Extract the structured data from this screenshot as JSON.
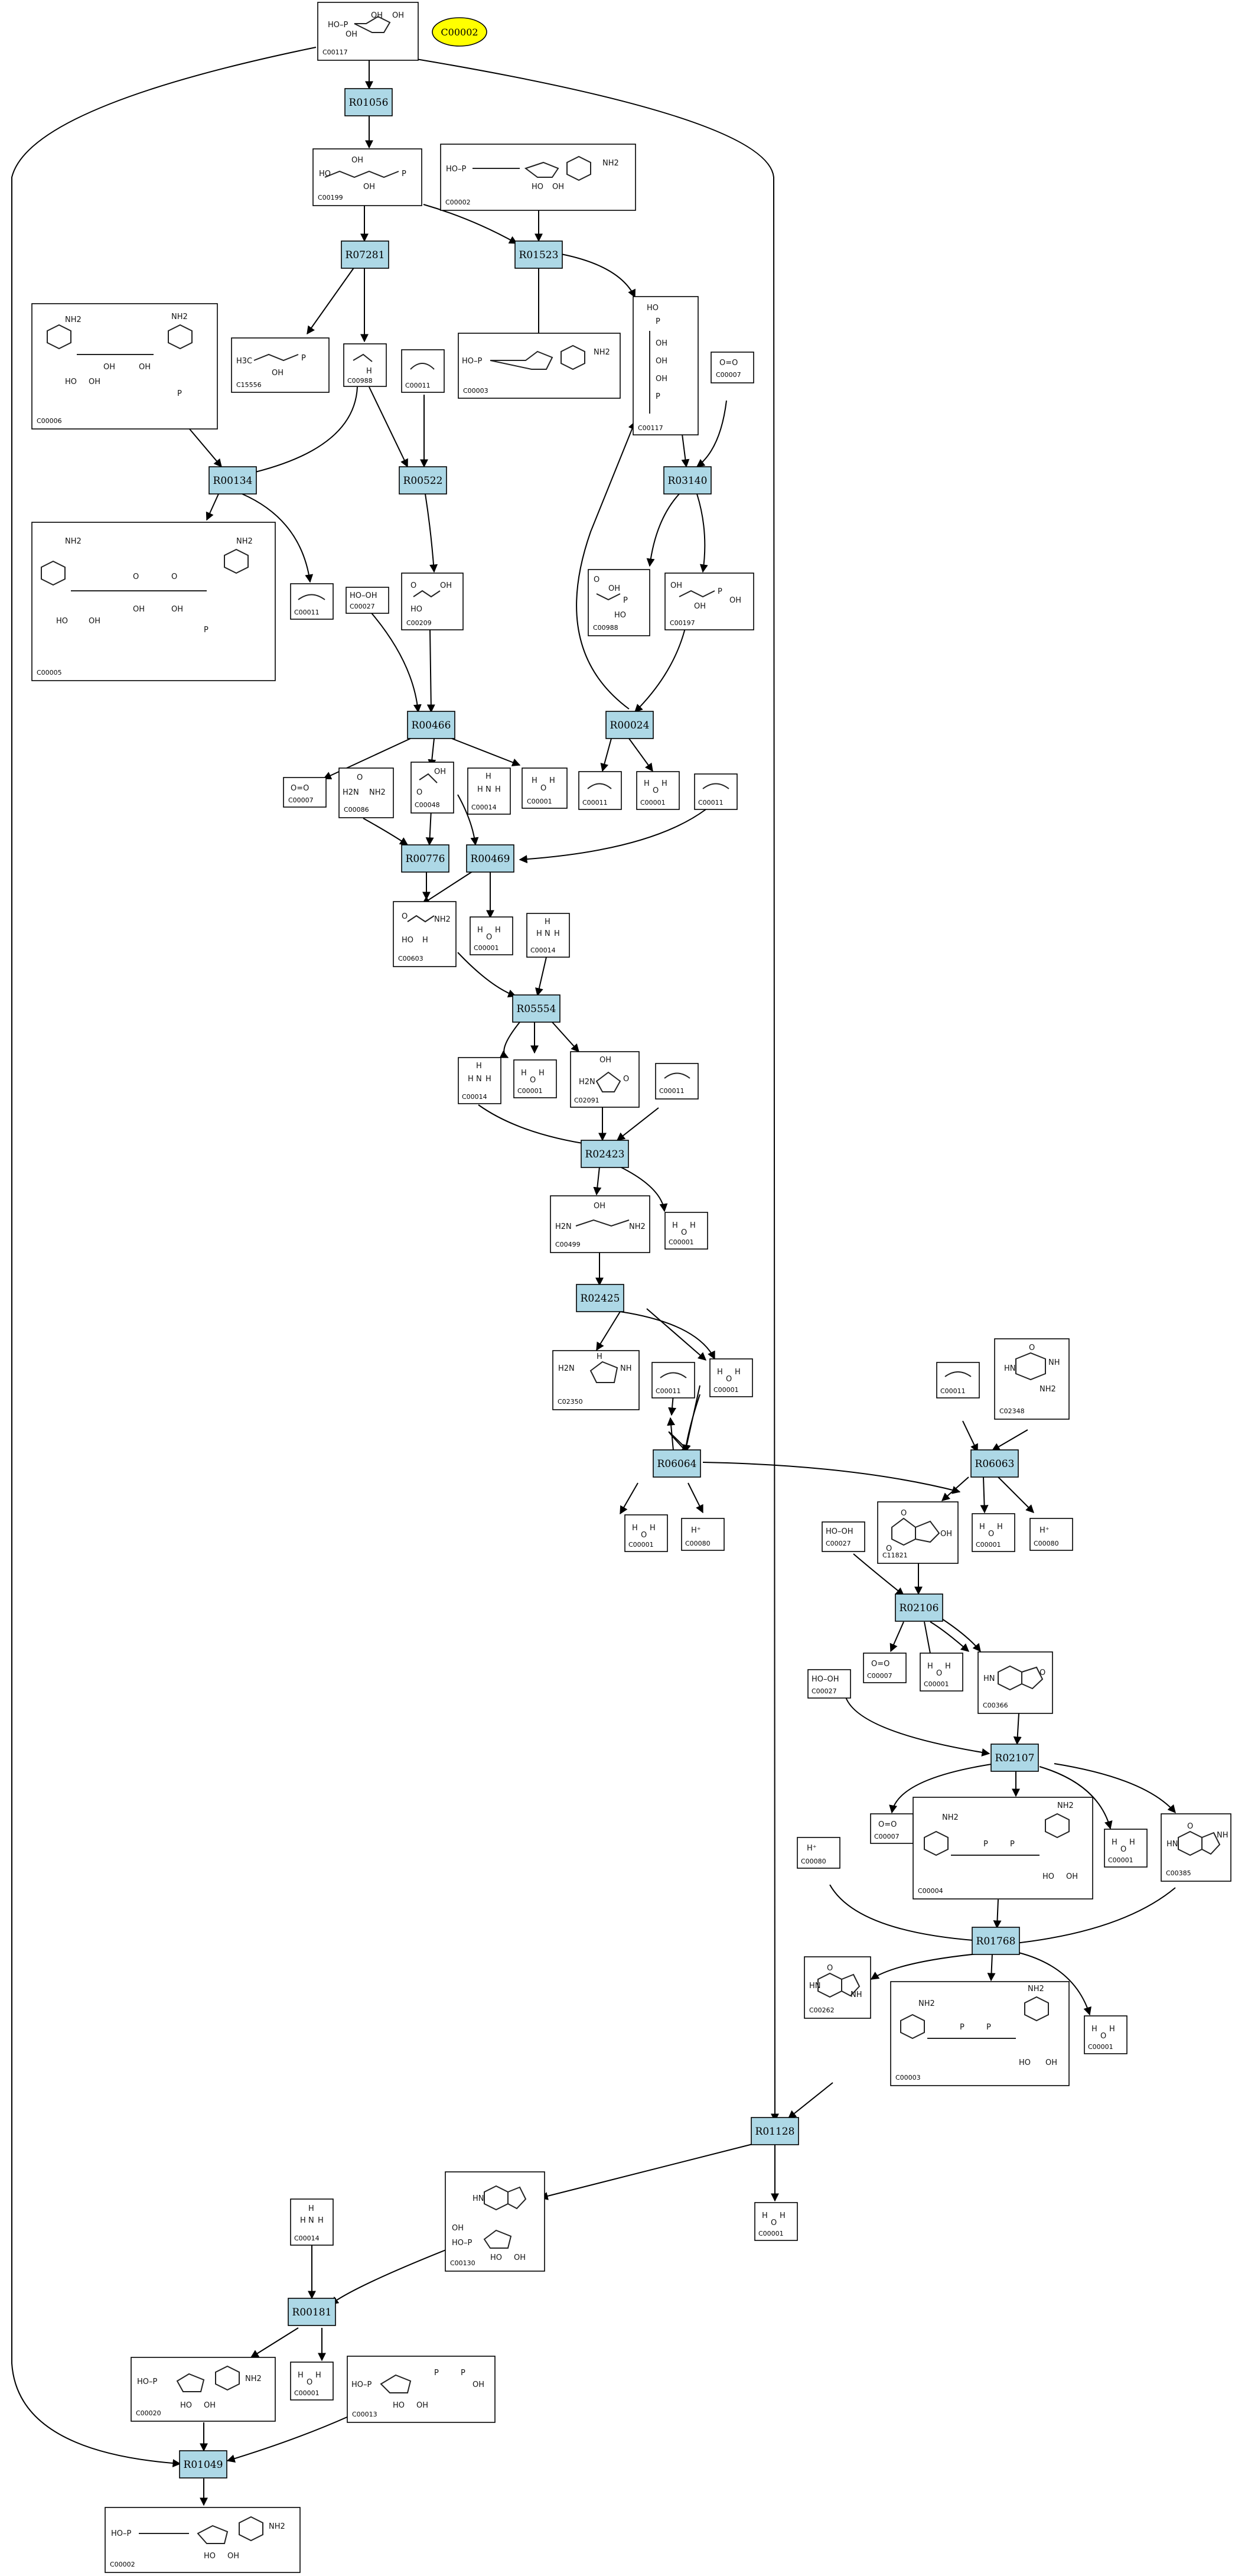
{
  "start_node": {
    "label": "C00002",
    "color": "#ffff00"
  },
  "colors": {
    "reaction_fill": "#add8e6",
    "compound_border": "#000000",
    "edge": "#000000"
  },
  "compounds": {
    "C00117": "C00117",
    "C00199": "C00199",
    "C00002": "C00002",
    "C15556": "C15556",
    "C00988": "C00988",
    "C00011": "C00011",
    "C00003": "C00003",
    "C00006": "C00006",
    "C00005": "C00005",
    "C00027": "C00027",
    "C00209": "C00209",
    "C00007": "C00007",
    "C00197": "C00197",
    "C00988b": "C00988",
    "C00086": "C00086",
    "C00048": "C00048",
    "C00014": "C00014",
    "C00001": "C00001",
    "C00603": "C00603",
    "C02091": "C02091",
    "C00499": "C00499",
    "C02350": "C02350",
    "C02348": "C02348",
    "C00080": "C00080",
    "C11821": "C11821",
    "C00366": "C00366",
    "C00004": "C00004",
    "C00385": "C00385",
    "C00262": "C00262",
    "C00130": "C00130",
    "C00020": "C00020",
    "C00013": "C00013",
    "C00002b": "C00002"
  },
  "reactions": [
    "R01056",
    "R07281",
    "R01523",
    "R00134",
    "R00522",
    "R03140",
    "R00466",
    "R00024",
    "R00776",
    "R00469",
    "R05554",
    "R02423",
    "R02425",
    "R06064",
    "R06063",
    "R02106",
    "R02107",
    "R01768",
    "R01128",
    "R00181",
    "R01049"
  ],
  "formula_text": {
    "oh": "OH",
    "ho": "HO",
    "o": "O",
    "p": "P",
    "nh2": "NH2",
    "h2n": "H2N",
    "nh": "NH",
    "hn": "HN",
    "n": "N",
    "h": "H",
    "h3c": "H3C",
    "ho_p": "HO–P",
    "hooh": "HO–OH",
    "oeqo": "O=O",
    "hplus": "H⁺",
    "water_h": "H",
    "water_o": "O"
  }
}
